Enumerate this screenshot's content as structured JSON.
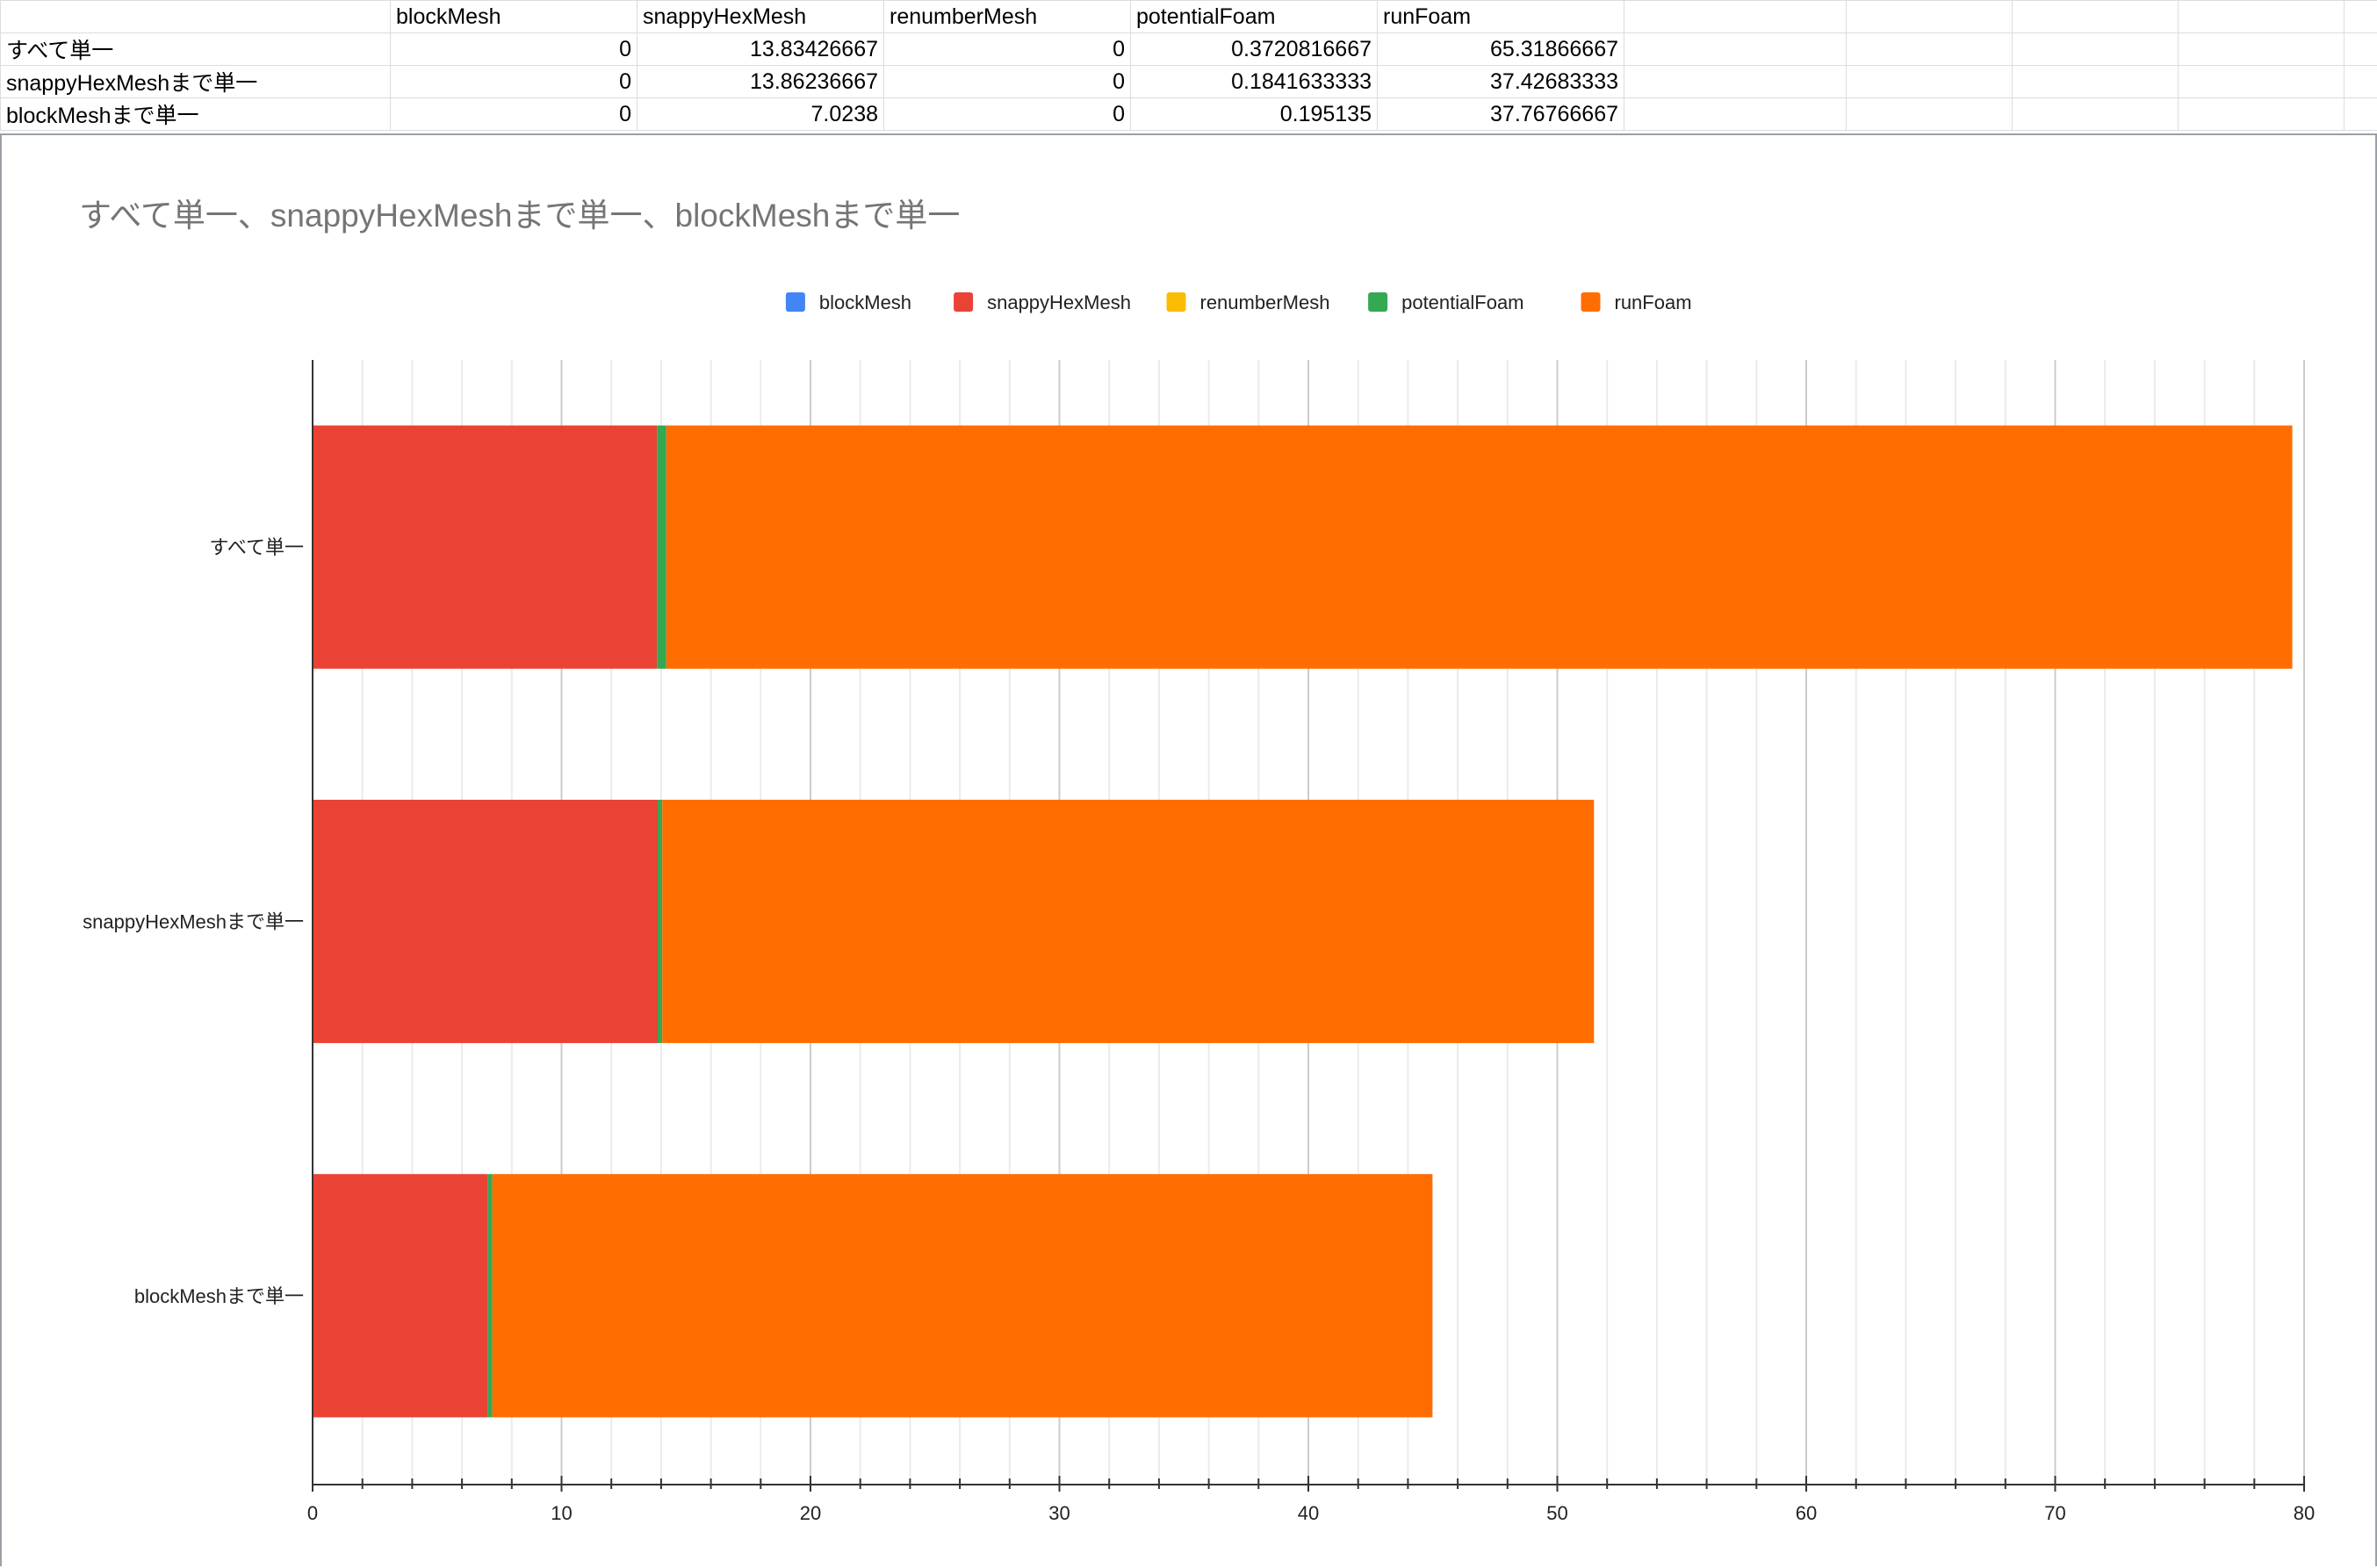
{
  "sheet": {
    "headers": [
      "",
      "blockMesh",
      "snappyHexMesh",
      "renumberMesh",
      "potentialFoam",
      "runFoam"
    ],
    "rows": [
      [
        "すべて単一",
        "0",
        "13.83426667",
        "0",
        "0.3720816667",
        "65.31866667"
      ],
      [
        "snappyHexMeshまで単一",
        "0",
        "13.86236667",
        "0",
        "0.1841633333",
        "37.42683333"
      ],
      [
        "blockMeshまで単一",
        "0",
        "7.0238",
        "0",
        "0.195135",
        "37.76766667"
      ]
    ]
  },
  "chart_data": {
    "type": "bar",
    "orientation": "horizontal",
    "stacked": true,
    "title": "すべて単一、snappyHexMeshまで単一、blockMeshまで単一",
    "categories": [
      "すべて単一",
      "snappyHexMeshまで単一",
      "blockMeshまで単一"
    ],
    "series": [
      {
        "name": "blockMesh",
        "color": "#4285f4",
        "values": [
          0,
          0,
          0
        ]
      },
      {
        "name": "snappyHexMesh",
        "color": "#ea4335",
        "values": [
          13.83426667,
          13.86236667,
          7.0238
        ]
      },
      {
        "name": "renumberMesh",
        "color": "#fbbc04",
        "values": [
          0,
          0,
          0
        ]
      },
      {
        "name": "potentialFoam",
        "color": "#34a853",
        "values": [
          0.3720816667,
          0.1841633333,
          0.195135
        ]
      },
      {
        "name": "runFoam",
        "color": "#ff6d01",
        "values": [
          65.31866667,
          37.42683333,
          37.76766667
        ]
      }
    ],
    "xlim": [
      0,
      80
    ],
    "xticks": [
      "0",
      "10",
      "20",
      "30",
      "40",
      "50",
      "60",
      "70",
      "80"
    ],
    "xlabel": "",
    "ylabel": "",
    "legend": "top-center",
    "grid": true
  }
}
